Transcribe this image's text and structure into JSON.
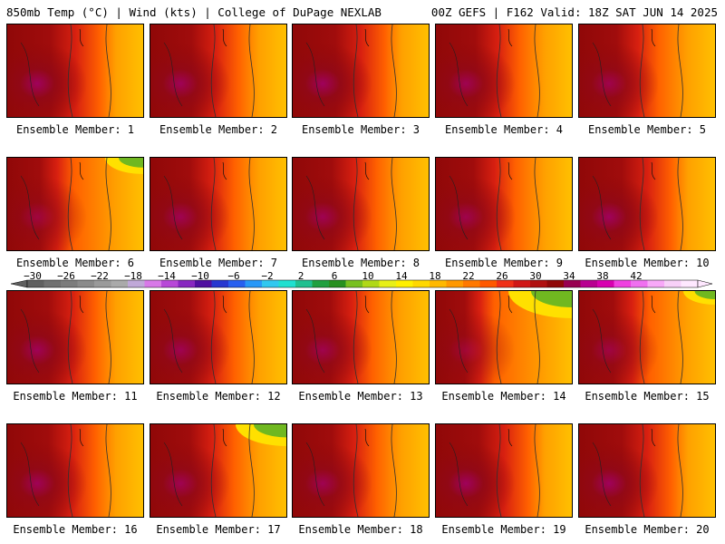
{
  "header": {
    "left": "850mb Temp (°C) | Wind (kts) | College of DuPage NEXLAB",
    "right": "00Z GEFS | F162 Valid: 18Z SAT JUN 14 2025"
  },
  "colorbar": {
    "tick_labels": [
      "−30",
      "−26",
      "−22",
      "−18",
      "−14",
      "−10",
      "−6",
      "−2",
      "2",
      "6",
      "10",
      "14",
      "18",
      "22",
      "26",
      "30",
      "34",
      "38",
      "42"
    ],
    "colors": [
      "#606060",
      "#707070",
      "#7c7c7c",
      "#8a8a8a",
      "#9a9a9a",
      "#aaaaaa",
      "#c0a8d8",
      "#d878e8",
      "#b848d8",
      "#8828c0",
      "#5010a0",
      "#2838d0",
      "#2860f0",
      "#2898f8",
      "#30c8f0",
      "#20e0d0",
      "#20c090",
      "#20a040",
      "#289020",
      "#78c020",
      "#b0d818",
      "#e8f018",
      "#fff000",
      "#ffd800",
      "#ffb800",
      "#ff9800",
      "#ff7800",
      "#ff5800",
      "#f03018",
      "#d01818",
      "#b01010",
      "#900808",
      "#980050",
      "#b80090",
      "#d800b0",
      "#f040e0",
      "#f070f0",
      "#f8a8f8",
      "#f8d0f8",
      "#ffe8ff"
    ]
  },
  "member_label_prefix": "Ensemble Member: ",
  "members": [
    {
      "caption": "Ensemble Member: 1",
      "hot": 0.85,
      "green": 0
    },
    {
      "caption": "Ensemble Member: 2",
      "hot": 0.8,
      "green": 0
    },
    {
      "caption": "Ensemble Member: 3",
      "hot": 0.85,
      "green": 0
    },
    {
      "caption": "Ensemble Member: 4",
      "hot": 0.75,
      "green": 0
    },
    {
      "caption": "Ensemble Member: 5",
      "hot": 0.7,
      "green": 0
    },
    {
      "caption": "Ensemble Member: 6",
      "hot": 0.55,
      "green": 0.6
    },
    {
      "caption": "Ensemble Member: 7",
      "hot": 0.75,
      "green": 0
    },
    {
      "caption": "Ensemble Member: 8",
      "hot": 0.75,
      "green": 0
    },
    {
      "caption": "Ensemble Member: 9",
      "hot": 0.7,
      "green": 0
    },
    {
      "caption": "Ensemble Member: 10",
      "hot": 0.85,
      "green": 0
    },
    {
      "caption": "Ensemble Member: 11",
      "hot": 0.8,
      "green": 0
    },
    {
      "caption": "Ensemble Member: 12",
      "hot": 0.75,
      "green": 0
    },
    {
      "caption": "Ensemble Member: 13",
      "hot": 0.7,
      "green": 0
    },
    {
      "caption": "Ensemble Member: 14",
      "hot": 0.45,
      "green": 1
    },
    {
      "caption": "Ensemble Member: 15",
      "hot": 0.6,
      "green": 0.5
    },
    {
      "caption": "Ensemble Member: 16",
      "hot": 0.8,
      "green": 0
    },
    {
      "caption": "Ensemble Member: 17",
      "hot": 0.75,
      "green": 0.8
    },
    {
      "caption": "Ensemble Member: 18",
      "hot": 0.75,
      "green": 0
    },
    {
      "caption": "Ensemble Member: 19",
      "hot": 0.85,
      "green": 0
    },
    {
      "caption": "Ensemble Member: 20",
      "hot": 0.85,
      "green": 0
    }
  ]
}
